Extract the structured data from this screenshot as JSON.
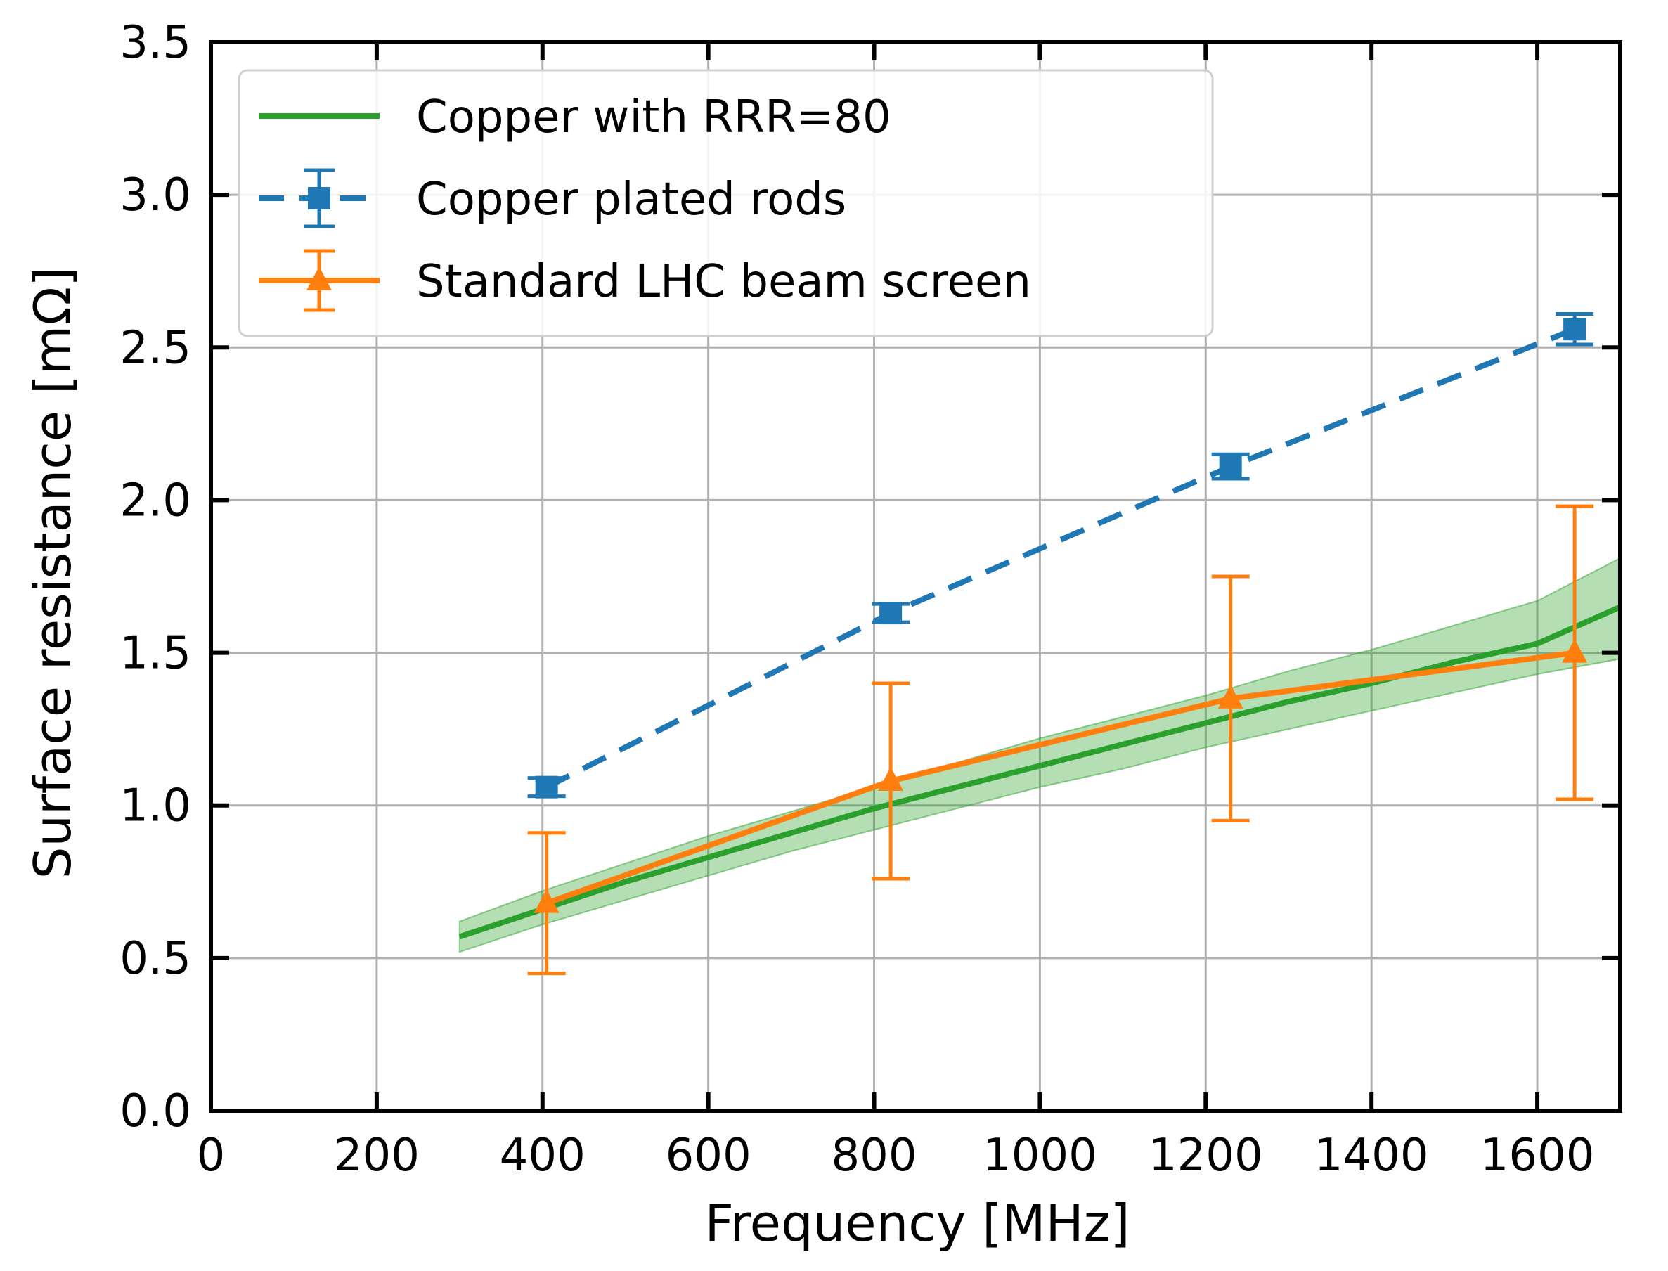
{
  "chart_data": {
    "type": "line",
    "title": "",
    "xlabel": "Frequency [MHz]",
    "ylabel": "Surface resistance [mΩ]",
    "xlim": [
      0,
      1700
    ],
    "ylim": [
      0.0,
      3.5
    ],
    "xticks": [
      0,
      200,
      400,
      600,
      800,
      1000,
      1200,
      1400,
      1600
    ],
    "yticks": [
      0.0,
      0.5,
      1.0,
      1.5,
      2.0,
      2.5,
      3.0,
      3.5
    ],
    "xtick_labels": [
      "0",
      "200",
      "400",
      "600",
      "800",
      "1000",
      "1200",
      "1400",
      "1600"
    ],
    "ytick_labels": [
      "0.0",
      "0.5",
      "1.0",
      "1.5",
      "2.0",
      "2.5",
      "3.0",
      "3.5"
    ],
    "grid": true,
    "legend_position": "top-left",
    "series": [
      {
        "name": "Copper with RRR=80",
        "style": "solid-line-with-band",
        "color": "#2ca02c",
        "x": [
          300,
          400,
          500,
          600,
          700,
          800,
          900,
          1000,
          1100,
          1200,
          1300,
          1400,
          1500,
          1600,
          1700
        ],
        "y": [
          0.57,
          0.66,
          0.75,
          0.83,
          0.91,
          0.99,
          1.06,
          1.13,
          1.2,
          1.27,
          1.34,
          1.4,
          1.47,
          1.53,
          1.65
        ],
        "band_lower": [
          0.52,
          0.61,
          0.69,
          0.77,
          0.85,
          0.92,
          0.99,
          1.06,
          1.12,
          1.19,
          1.25,
          1.31,
          1.37,
          1.43,
          1.48
        ],
        "band_upper": [
          0.62,
          0.72,
          0.81,
          0.9,
          0.98,
          1.06,
          1.14,
          1.22,
          1.29,
          1.36,
          1.44,
          1.51,
          1.59,
          1.67,
          1.81
        ]
      },
      {
        "name": "Copper plated rods",
        "style": "dashed-square-errorbar",
        "color": "#1f77b4",
        "x": [
          405,
          820,
          1230,
          1645
        ],
        "y": [
          1.06,
          1.63,
          2.11,
          2.56
        ],
        "yerr": [
          0.03,
          0.03,
          0.04,
          0.05
        ]
      },
      {
        "name": "Standard LHC beam screen",
        "style": "solid-triangle-errorbar",
        "color": "#ff7f0e",
        "x": [
          405,
          820,
          1230,
          1645
        ],
        "y": [
          0.68,
          1.08,
          1.35,
          1.5
        ],
        "yerr": [
          0.23,
          0.32,
          0.4,
          0.48
        ]
      }
    ]
  }
}
